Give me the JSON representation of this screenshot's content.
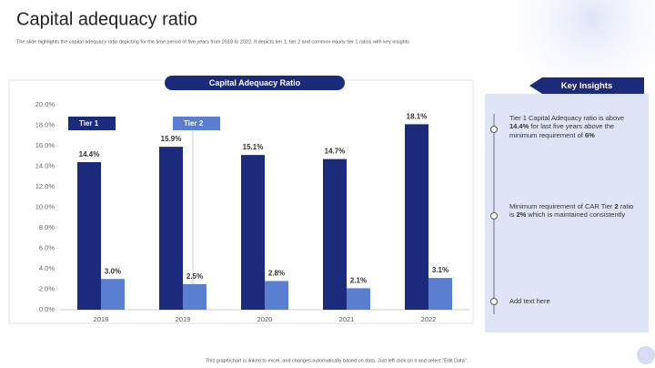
{
  "header": {
    "title": "Capital adequacy ratio",
    "subtitle": "The slide highlights the capital adequacy ratio depicting for the time period of five years from 2018 to 2022. It depicts tier 1, tier 2 and common equity tier 1 ratios with key insights"
  },
  "chart_data": {
    "type": "bar",
    "title": "Capital Adequacy Ratio",
    "categories": [
      "2018",
      "2019",
      "2020",
      "2021",
      "2022"
    ],
    "series": [
      {
        "name": "Tier 1",
        "color": "#1b2a7a",
        "values": [
          14.4,
          15.9,
          15.1,
          14.7,
          18.1
        ],
        "value_labels": [
          "14.4%",
          "15.9%",
          "15.1%",
          "14.7%",
          "18.1%"
        ]
      },
      {
        "name": "Tier 2",
        "color": "#5b7fd0",
        "values": [
          3.0,
          2.5,
          2.8,
          2.1,
          3.1
        ],
        "value_labels": [
          "3.0%",
          "2.5%",
          "2.8%",
          "2.1%",
          "3.1%"
        ]
      }
    ],
    "ylim": [
      0,
      20
    ],
    "yticks": [
      {
        "value": 0,
        "label": "0.0%"
      },
      {
        "value": 2,
        "label": "2.0%"
      },
      {
        "value": 4,
        "label": "4.0%"
      },
      {
        "value": 6,
        "label": "6.0%"
      },
      {
        "value": 8,
        "label": "8.0%"
      },
      {
        "value": 10,
        "label": "10.0%"
      },
      {
        "value": 12,
        "label": "12.0%"
      },
      {
        "value": 14,
        "label": "14.0%"
      },
      {
        "value": 16,
        "label": "16.0%"
      },
      {
        "value": 18,
        "label": "18.0%"
      },
      {
        "value": 20,
        "label": "20.0%"
      }
    ],
    "grid": false
  },
  "insights": {
    "title": "Key Insights",
    "items": [
      {
        "parts": [
          {
            "text": "Tier 1 Capital Adequacy ratio is above ",
            "bold": false
          },
          {
            "text": "14.4%",
            "bold": true
          },
          {
            "text": " for last five years above the minimum requirement of ",
            "bold": false
          },
          {
            "text": "6%",
            "bold": true
          }
        ]
      },
      {
        "parts": [
          {
            "text": "Minimum requirement of CAR Tier ",
            "bold": false
          },
          {
            "text": "2",
            "bold": true
          },
          {
            "text": " ratio is ",
            "bold": false
          },
          {
            "text": "2%",
            "bold": true
          },
          {
            "text": " which is maintained consistently",
            "bold": false
          }
        ]
      },
      {
        "parts": [
          {
            "text": "Add text here",
            "bold": false
          }
        ]
      }
    ]
  },
  "footer": {
    "note": "This graph/chart is linked to excel, and changes automatically based on data. Just left click on it and select \"Edit Data\"."
  }
}
